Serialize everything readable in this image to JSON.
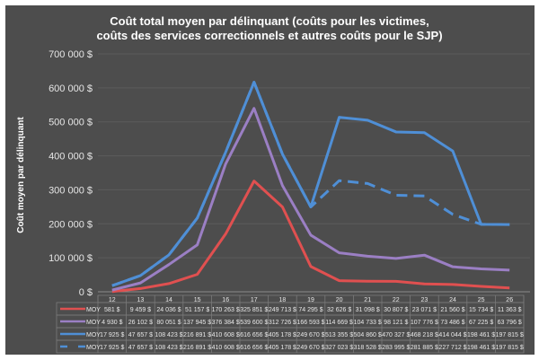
{
  "chart_data": {
    "type": "line",
    "title_lines": [
      "Coût total moyen par délinquant (coûts pour les victimes,",
      "coûts des services correctionnels et autres coûts pour le SJP)"
    ],
    "xlabel": "",
    "ylabel": "Coût moyen par délinquant",
    "ylim": [
      0,
      700000
    ],
    "yticks": [
      0,
      100000,
      200000,
      300000,
      400000,
      500000,
      600000,
      700000
    ],
    "ytick_labels": [
      "0 $",
      "100 000 $",
      "200 000 $",
      "300 000 $",
      "400 000 $",
      "500 000 $",
      "600 000 $",
      "700 000 $"
    ],
    "grid": true,
    "legend": "data-table",
    "categories": [
      "12",
      "13",
      "14",
      "15",
      "16",
      "17",
      "18",
      "19",
      "20",
      "21",
      "22",
      "23",
      "24",
      "25",
      "26"
    ],
    "series": [
      {
        "name": "MOY",
        "color": "#e05050",
        "dash": false,
        "values": [
          581,
          9459,
          24036,
          51157,
          170263,
          325851,
          249713,
          74295,
          32626,
          31098,
          30807,
          23071,
          21560,
          15734,
          11363
        ],
        "labels": [
          "581 $",
          "9 459 $",
          "24 036 $",
          "51 157 $",
          "170 263 $",
          "325 851 $",
          "249 713 $",
          "74 295 $",
          "32 626 $",
          "31 098 $",
          "30 807 $",
          "23 071 $",
          "21 560 $",
          "15 734 $",
          "11 363 $"
        ]
      },
      {
        "name": "MOY",
        "color": "#9b7fc4",
        "dash": false,
        "values": [
          4930,
          26102,
          80051,
          137945,
          376384,
          539600,
          312726,
          166593,
          114669,
          104733,
          98121,
          107776,
          73486,
          67225,
          63796
        ],
        "labels": [
          "4 930 $",
          "26 102 $",
          "80 051 $",
          "137 945 $",
          "376 384 $",
          "539 600 $",
          "312 726 $",
          "166 593 $",
          "114 669 $",
          "104 733 $",
          "98 121 $",
          "107 776 $",
          "73 486 $",
          "67 225 $",
          "63 796 $"
        ]
      },
      {
        "name": "MOY",
        "color": "#4f8fd6",
        "dash": false,
        "values": [
          17925,
          47657,
          108423,
          216891,
          410608,
          616656,
          405178,
          249670,
          513355,
          504860,
          470327,
          468218,
          414044,
          198461,
          197815
        ],
        "labels": [
          "17 925 $",
          "47 657 $",
          "108 423 $",
          "216 891 $",
          "410 608 $",
          "616 656 $",
          "405 178 $",
          "249 670 $",
          "513 355 $",
          "504 860 $",
          "470 327 $",
          "468 218 $",
          "414 044 $",
          "198 461 $",
          "197 815 $"
        ]
      },
      {
        "name": "MOY",
        "color": "#4f8fd6",
        "dash": true,
        "values": [
          17925,
          47657,
          108423,
          216891,
          410608,
          616656,
          405178,
          249670,
          327023,
          318528,
          283995,
          281885,
          227712,
          198461,
          197815
        ],
        "labels": [
          "17 925 $",
          "47 657 $",
          "108 423 $",
          "216 891 $",
          "410 608 $",
          "616 656 $",
          "405 178 $",
          "249 670 $",
          "327 023 $",
          "318 528 $",
          "283 995 $",
          "281 885 $",
          "227 712 $",
          "198 461 $",
          "197 815 $"
        ]
      }
    ]
  }
}
